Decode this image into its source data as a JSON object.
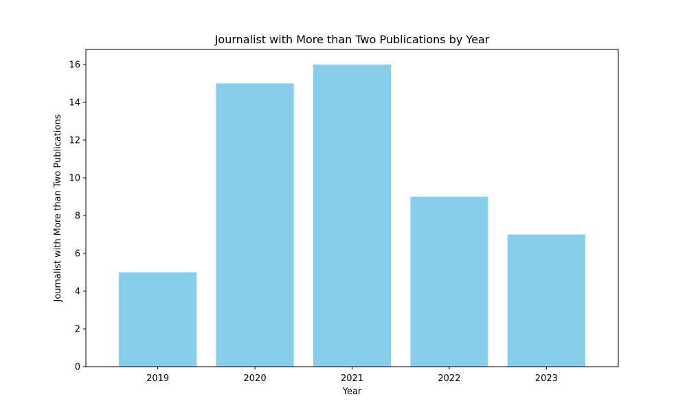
{
  "chart_data": {
    "type": "bar",
    "title": "Journalist with More than Two Publications by Year",
    "xlabel": "Year",
    "ylabel": "Journalist with More than Two Publications",
    "categories": [
      "2019",
      "2020",
      "2021",
      "2022",
      "2023"
    ],
    "values": [
      5,
      15,
      16,
      9,
      7
    ],
    "ylim": [
      0,
      16.8
    ],
    "yticks": [
      0,
      2,
      4,
      6,
      8,
      10,
      12,
      14,
      16
    ],
    "grid": false,
    "legend": "none",
    "bar_color": "#87CEEB"
  }
}
